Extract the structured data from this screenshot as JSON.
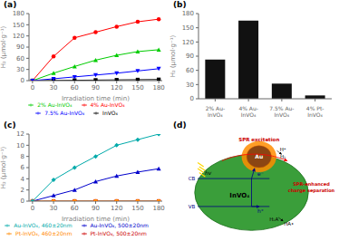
{
  "chart_data": [
    {
      "type": "line",
      "title": "(a)",
      "x_label": "Irradiation time (min)",
      "y_label": "H₂ (μmol·g⁻¹)",
      "x": [
        0,
        30,
        60,
        90,
        120,
        150,
        180
      ],
      "series": [
        {
          "name": "InVO₄",
          "color": "#000000",
          "marker": "square",
          "values": [
            0,
            0.5,
            1.0,
            1.5,
            2.0,
            2.5,
            3.0
          ]
        },
        {
          "name": "2% Au-InVO₄",
          "color": "#00cc00",
          "marker": "triangle",
          "values": [
            0,
            20,
            38,
            55,
            68,
            78,
            83
          ]
        },
        {
          "name": "4% Au-InVO₄",
          "color": "#ff0000",
          "marker": "circle",
          "values": [
            0,
            65,
            115,
            130,
            145,
            158,
            165
          ]
        },
        {
          "name": "7.5% Au-InVO₄",
          "color": "#0000ff",
          "marker": "triangle-down",
          "values": [
            0,
            5,
            10,
            15,
            20,
            26,
            32
          ]
        }
      ],
      "xlim": [
        -5,
        185
      ],
      "xticks": [
        0,
        30,
        60,
        90,
        120,
        150,
        180
      ],
      "ylim": [
        0,
        180
      ],
      "yticks": [
        0,
        30,
        60,
        90,
        120,
        150,
        180
      ],
      "grid": false,
      "legend": "bottom"
    },
    {
      "type": "bar",
      "title": "(b)",
      "y_label": "H₂ (μmol·g⁻¹)",
      "categories": [
        "2% Au-InVO₄",
        "4% Au-InVO₄",
        "7.5% Au-InVO₄",
        "4% Pt-InVO₄"
      ],
      "values": [
        83,
        165,
        32,
        7
      ],
      "color": "#111111",
      "ylim": [
        0,
        180
      ],
      "yticks": [
        0,
        30,
        60,
        90,
        120,
        150,
        180
      ],
      "grid": false
    },
    {
      "type": "line",
      "title": "(c)",
      "x_label": "Irradiation time (min)",
      "y_label": "H₂ (μmol·g⁻¹)",
      "x": [
        0,
        30,
        60,
        90,
        120,
        150,
        180
      ],
      "series": [
        {
          "name": "Pt-InVO₄, 500±20nm",
          "color": "#cc0000",
          "marker": "square",
          "values": [
            0,
            0,
            0,
            0,
            0,
            0,
            0
          ]
        },
        {
          "name": "Pt-InVO₄, 460±20nm",
          "color": "#ff8800",
          "marker": "circle",
          "values": [
            0,
            0,
            0,
            0,
            0,
            0,
            0
          ]
        },
        {
          "name": "Au-InVO₄, 500±20nm",
          "color": "#0000cc",
          "marker": "triangle",
          "values": [
            0,
            1.0,
            2.0,
            3.5,
            4.5,
            5.2,
            5.8
          ]
        },
        {
          "name": "Au-InVO₄, 460±20nm",
          "color": "#00aaaa",
          "marker": "diamond",
          "values": [
            0,
            3.8,
            6.0,
            8.0,
            10.0,
            11.0,
            12.0
          ]
        }
      ],
      "xlim": [
        -5,
        185
      ],
      "xticks": [
        0,
        30,
        60,
        90,
        120,
        150,
        180
      ],
      "ylim": [
        0,
        12
      ],
      "yticks": [
        0,
        2,
        4,
        6,
        8,
        10,
        12
      ],
      "grid": false,
      "legend": "bottom"
    },
    {
      "type": "diagram",
      "title": "(d)",
      "annotations": [
        "Au",
        "InVO₄",
        "CB",
        "VB",
        "hv",
        "e⁻",
        "H⁺",
        "H₂",
        "h⁺",
        "H₂A",
        "HA•",
        "SPR excitation",
        "SPR-enhanced charge separation"
      ]
    }
  ]
}
